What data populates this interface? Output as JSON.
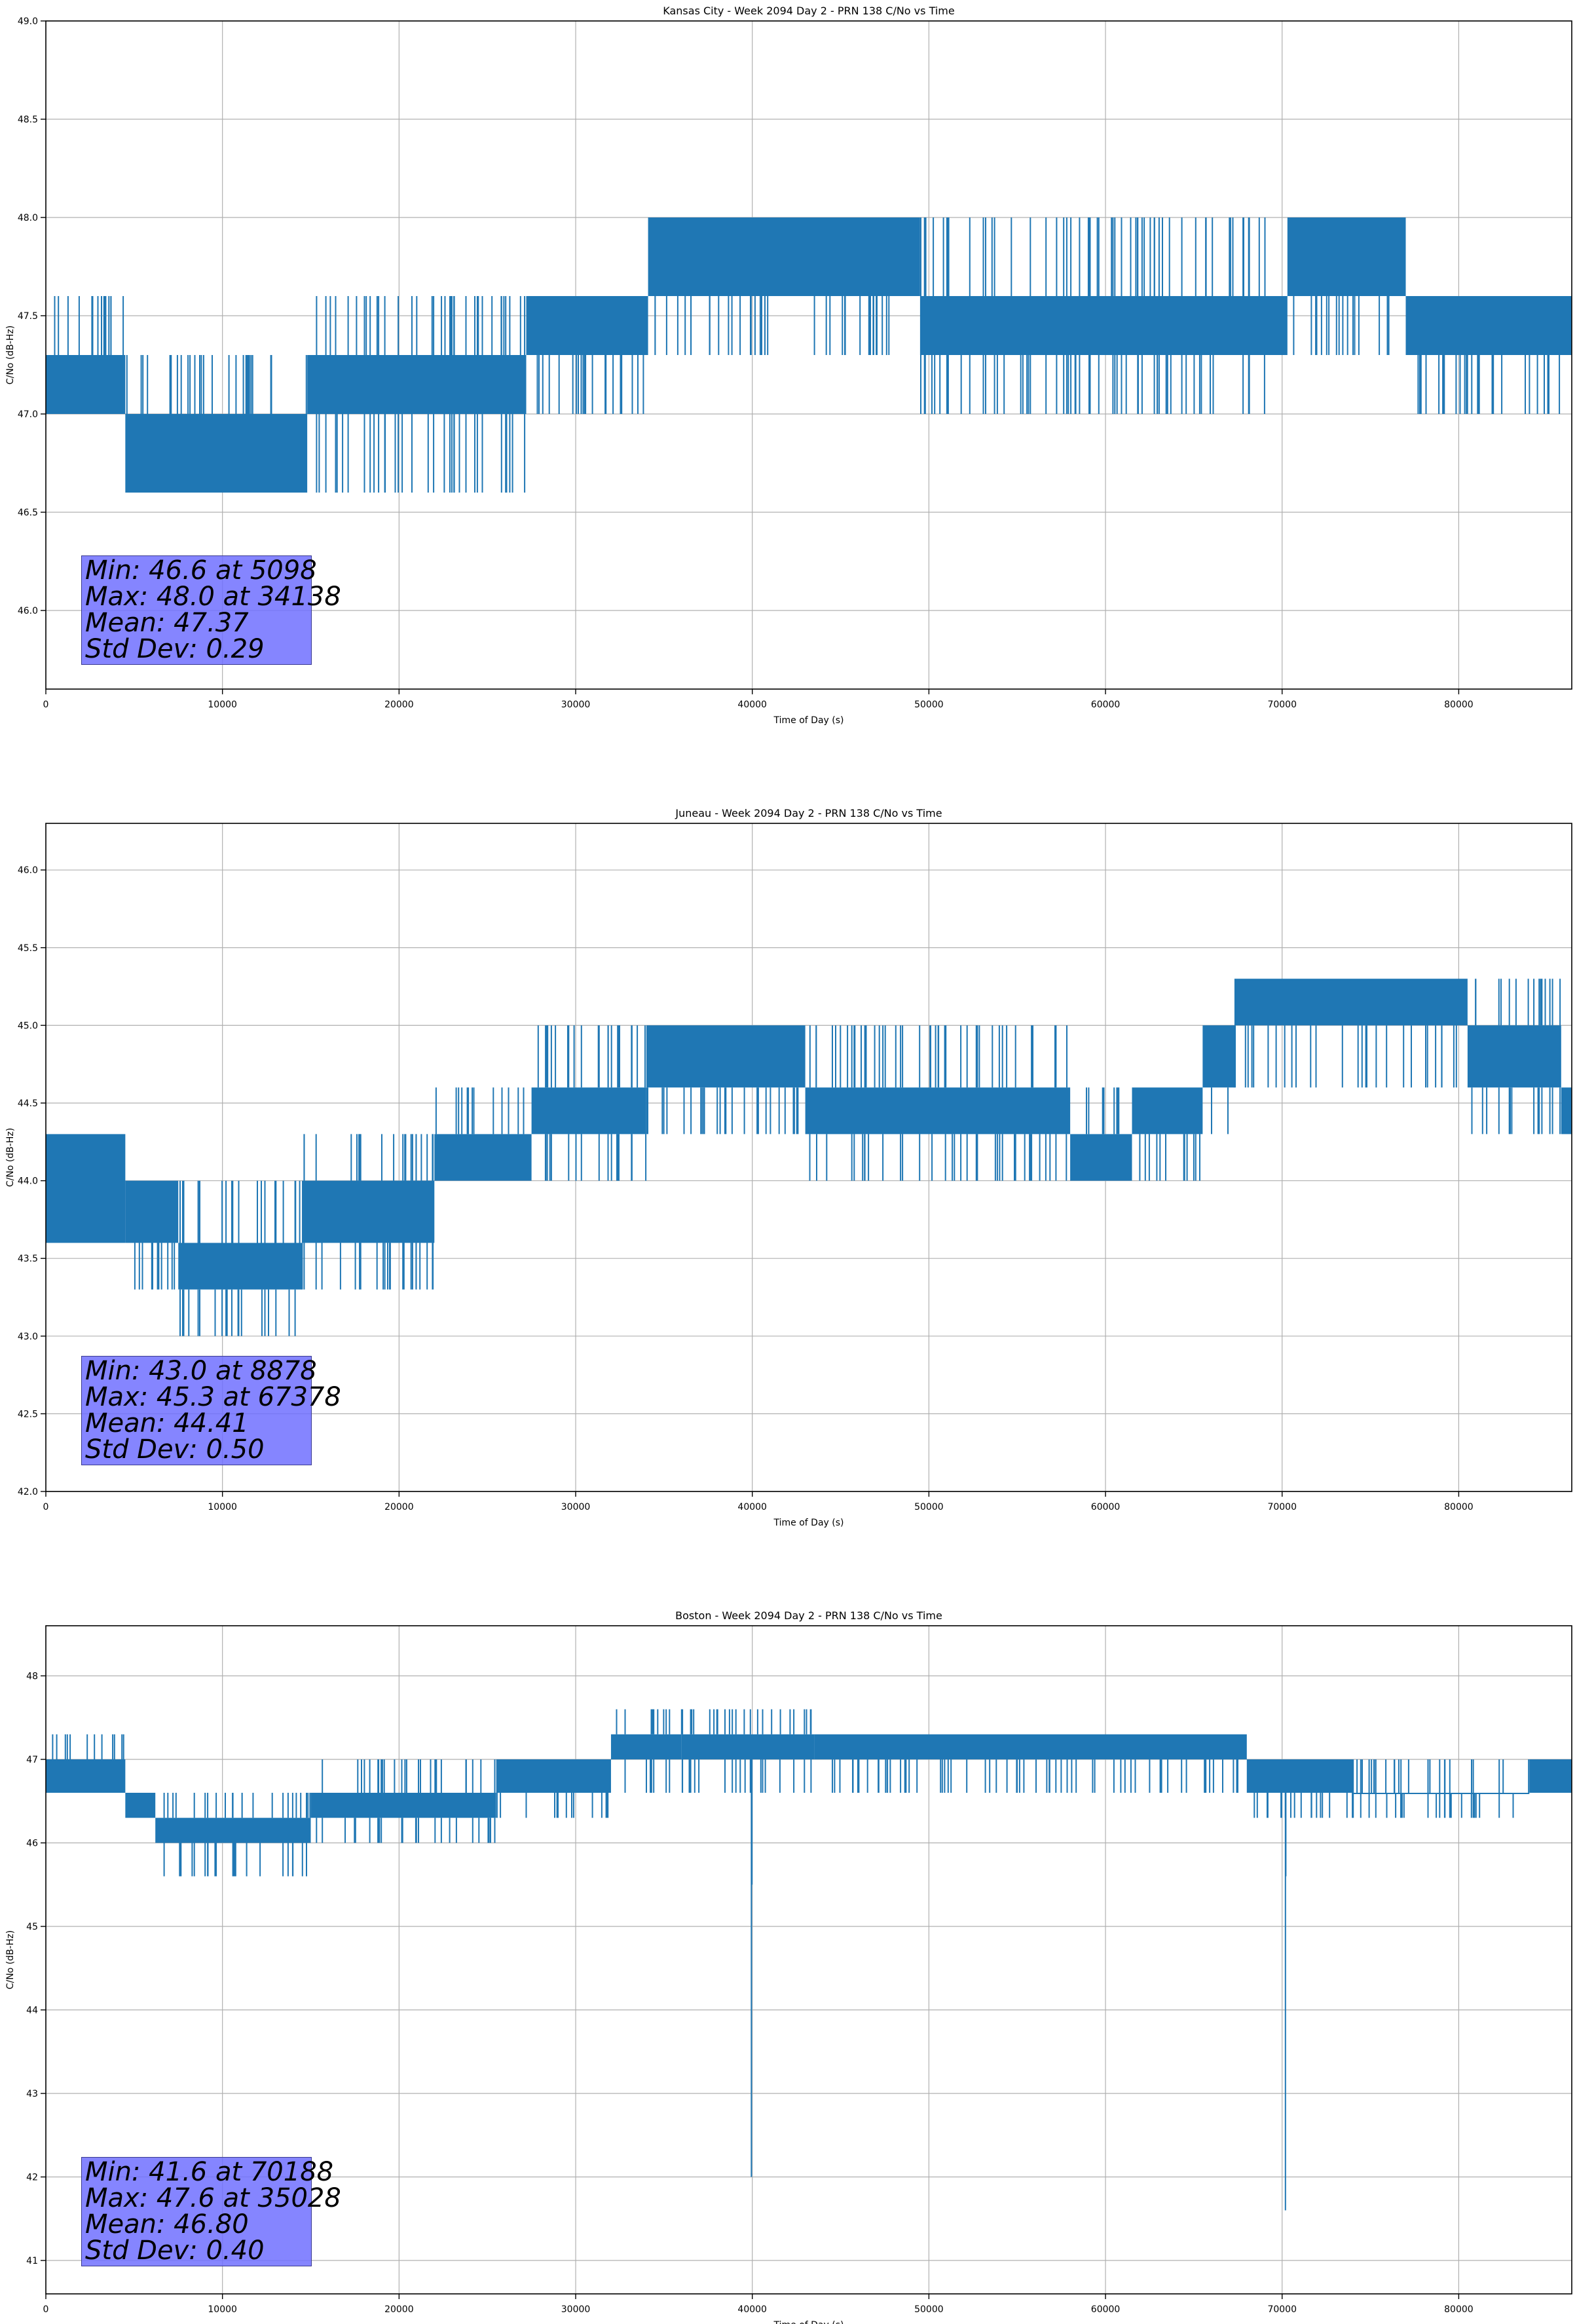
{
  "colors": {
    "series": "#1f77b4",
    "grid": "#b0b0b0",
    "stats_box": "#7070ff"
  },
  "chart_data": [
    {
      "type": "line",
      "title": "Kansas City - Week 2094 Day 2 - PRN 138 C/No vs Time",
      "xlabel": "Time of Day (s)",
      "ylabel": "C/No (dB-Hz)",
      "xlim": [
        0,
        86400
      ],
      "ylim": [
        45.6,
        49.0
      ],
      "xticks": [
        0,
        10000,
        20000,
        30000,
        40000,
        50000,
        60000,
        70000,
        80000
      ],
      "yticks": [
        46.0,
        46.5,
        47.0,
        47.5,
        48.0,
        48.5,
        49.0
      ],
      "ytick_labels": [
        "46.0",
        "46.5",
        "47.0",
        "47.5",
        "48.0",
        "48.5",
        "49.0"
      ],
      "grid": true,
      "series": [
        {
          "name": "PRN 138 C/No",
          "bands": [
            {
              "x0": 0,
              "x1": 4500,
              "lo": 47.0,
              "hi": 47.3,
              "spike_up": 47.6,
              "spike_dn": 47.0
            },
            {
              "x0": 4500,
              "x1": 14800,
              "lo": 46.6,
              "hi": 47.0,
              "spike_up": 47.3,
              "spike_dn": 46.6
            },
            {
              "x0": 14800,
              "x1": 27200,
              "lo": 47.0,
              "hi": 47.3,
              "spike_up": 47.6,
              "spike_dn": 46.6
            },
            {
              "x0": 27200,
              "x1": 34100,
              "lo": 47.3,
              "hi": 47.6,
              "spike_up": 47.6,
              "spike_dn": 47.0
            },
            {
              "x0": 34100,
              "x1": 49500,
              "lo": 47.6,
              "hi": 48.0,
              "spike_up": 48.0,
              "spike_dn": 47.3
            },
            {
              "x0": 49500,
              "x1": 70300,
              "lo": 47.3,
              "hi": 47.6,
              "spike_up": 48.0,
              "spike_dn": 47.0
            },
            {
              "x0": 70300,
              "x1": 77000,
              "lo": 47.6,
              "hi": 48.0,
              "spike_up": 48.0,
              "spike_dn": 47.3
            },
            {
              "x0": 77000,
              "x1": 86400,
              "lo": 47.3,
              "hi": 47.6,
              "spike_up": 47.6,
              "spike_dn": 47.0
            }
          ],
          "outliers": [
            {
              "x": 21000,
              "y": 47.6
            },
            {
              "x": 22400,
              "y": 47.6
            },
            {
              "x": 22600,
              "y": 47.6
            }
          ]
        }
      ],
      "stats": {
        "min": "Min: 46.6 at 5098",
        "max": "Max: 48.0 at 34138",
        "mean": "Mean: 47.37",
        "std": "Std Dev: 0.29"
      }
    },
    {
      "type": "line",
      "title": "Juneau - Week 2094 Day 2 - PRN 138 C/No vs Time",
      "xlabel": "Time of Day (s)",
      "ylabel": "C/No (dB-Hz)",
      "xlim": [
        0,
        86400
      ],
      "ylim": [
        42.0,
        46.3
      ],
      "xticks": [
        0,
        10000,
        20000,
        30000,
        40000,
        50000,
        60000,
        70000,
        80000
      ],
      "yticks": [
        42.0,
        42.5,
        43.0,
        43.5,
        44.0,
        44.5,
        45.0,
        45.5,
        46.0
      ],
      "ytick_labels": [
        "42.0",
        "42.5",
        "43.0",
        "43.5",
        "44.0",
        "44.5",
        "45.0",
        "45.5",
        "46.0"
      ],
      "grid": true,
      "series": [
        {
          "name": "PRN 138 C/No",
          "bands": [
            {
              "x0": 0,
              "x1": 4500,
              "lo": 43.6,
              "hi": 44.3,
              "spike_up": 44.3,
              "spike_dn": 43.6
            },
            {
              "x0": 4500,
              "x1": 7500,
              "lo": 43.6,
              "hi": 44.0,
              "spike_up": 44.0,
              "spike_dn": 43.3
            },
            {
              "x0": 7500,
              "x1": 14500,
              "lo": 43.3,
              "hi": 43.6,
              "spike_up": 44.0,
              "spike_dn": 43.0
            },
            {
              "x0": 14500,
              "x1": 22000,
              "lo": 43.6,
              "hi": 44.0,
              "spike_up": 44.3,
              "spike_dn": 43.3
            },
            {
              "x0": 22000,
              "x1": 27500,
              "lo": 44.0,
              "hi": 44.3,
              "spike_up": 44.6,
              "spike_dn": 44.0
            },
            {
              "x0": 27500,
              "x1": 34000,
              "lo": 44.3,
              "hi": 44.6,
              "spike_up": 45.0,
              "spike_dn": 44.0
            },
            {
              "x0": 34000,
              "x1": 43000,
              "lo": 44.6,
              "hi": 45.0,
              "spike_up": 45.0,
              "spike_dn": 44.3
            },
            {
              "x0": 43000,
              "x1": 58000,
              "lo": 44.3,
              "hi": 44.6,
              "spike_up": 45.0,
              "spike_dn": 44.0
            },
            {
              "x0": 58000,
              "x1": 61500,
              "lo": 44.0,
              "hi": 44.3,
              "spike_up": 44.6,
              "spike_dn": 44.0
            },
            {
              "x0": 61500,
              "x1": 65500,
              "lo": 44.3,
              "hi": 44.6,
              "spike_up": 44.6,
              "spike_dn": 44.0
            },
            {
              "x0": 65500,
              "x1": 67300,
              "lo": 44.6,
              "hi": 45.0,
              "spike_up": 45.0,
              "spike_dn": 44.3
            },
            {
              "x0": 67300,
              "x1": 80500,
              "lo": 45.0,
              "hi": 45.3,
              "spike_up": 45.3,
              "spike_dn": 44.6
            },
            {
              "x0": 80500,
              "x1": 85800,
              "lo": 44.6,
              "hi": 45.0,
              "spike_up": 45.3,
              "spike_dn": 44.3
            },
            {
              "x0": 85800,
              "x1": 86400,
              "lo": 44.3,
              "hi": 44.6,
              "spike_up": 44.6,
              "spike_dn": 44.3
            }
          ],
          "outliers": []
        }
      ],
      "stats": {
        "min": "Min: 43.0 at 8878",
        "max": "Max: 45.3 at 67378",
        "mean": "Mean: 44.41",
        "std": "Std Dev: 0.50"
      }
    },
    {
      "type": "line",
      "title": "Boston - Week 2094 Day 2 - PRN 138 C/No vs Time",
      "xlabel": "Time of Day (s)",
      "ylabel": "C/No (dB-Hz)",
      "xlim": [
        0,
        86400
      ],
      "ylim": [
        40.6,
        48.6
      ],
      "xticks": [
        0,
        10000,
        20000,
        30000,
        40000,
        50000,
        60000,
        70000,
        80000
      ],
      "yticks": [
        41,
        42,
        43,
        44,
        45,
        46,
        47,
        48
      ],
      "ytick_labels": [
        "41",
        "42",
        "43",
        "44",
        "45",
        "46",
        "47",
        "48"
      ],
      "grid": true,
      "series": [
        {
          "name": "PRN 138 C/No",
          "bands": [
            {
              "x0": 0,
              "x1": 4500,
              "lo": 46.6,
              "hi": 47.0,
              "spike_up": 47.3,
              "spike_dn": 46.6
            },
            {
              "x0": 4500,
              "x1": 6200,
              "lo": 46.3,
              "hi": 46.6,
              "spike_up": 46.6,
              "spike_dn": 46.3
            },
            {
              "x0": 6200,
              "x1": 15000,
              "lo": 46.0,
              "hi": 46.3,
              "spike_up": 46.6,
              "spike_dn": 45.6
            },
            {
              "x0": 15000,
              "x1": 25500,
              "lo": 46.3,
              "hi": 46.6,
              "spike_up": 47.0,
              "spike_dn": 46.0
            },
            {
              "x0": 25500,
              "x1": 32000,
              "lo": 46.6,
              "hi": 47.0,
              "spike_up": 47.0,
              "spike_dn": 46.3
            },
            {
              "x0": 32000,
              "x1": 36000,
              "lo": 47.0,
              "hi": 47.3,
              "spike_up": 47.6,
              "spike_dn": 46.6
            },
            {
              "x0": 36000,
              "x1": 43500,
              "lo": 47.0,
              "hi": 47.3,
              "spike_up": 47.6,
              "spike_dn": 46.6
            },
            {
              "x0": 43500,
              "x1": 68000,
              "lo": 47.0,
              "hi": 47.3,
              "spike_up": 47.3,
              "spike_dn": 46.6
            },
            {
              "x0": 68000,
              "x1": 74000,
              "lo": 46.6,
              "hi": 47.0,
              "spike_up": 47.0,
              "spike_dn": 46.3
            },
            {
              "x0": 74000,
              "x1": 84000,
              "lo": 46.6,
              "hi": 46.6,
              "spike_up": 47.0,
              "spike_dn": 46.3
            },
            {
              "x0": 84000,
              "x1": 86400,
              "lo": 46.6,
              "hi": 47.0,
              "spike_up": 47.0,
              "spike_dn": 46.6
            }
          ],
          "outliers": [
            {
              "x": 39950,
              "y": 42.0
            },
            {
              "x": 39980,
              "y": 45.5
            },
            {
              "x": 70188,
              "y": 41.6
            },
            {
              "x": 70210,
              "y": 45.6
            }
          ]
        }
      ],
      "stats": {
        "min": "Min: 41.6 at 70188",
        "max": "Max: 47.6 at 35028",
        "mean": "Mean: 46.80",
        "std": "Std Dev: 0.40"
      }
    }
  ]
}
